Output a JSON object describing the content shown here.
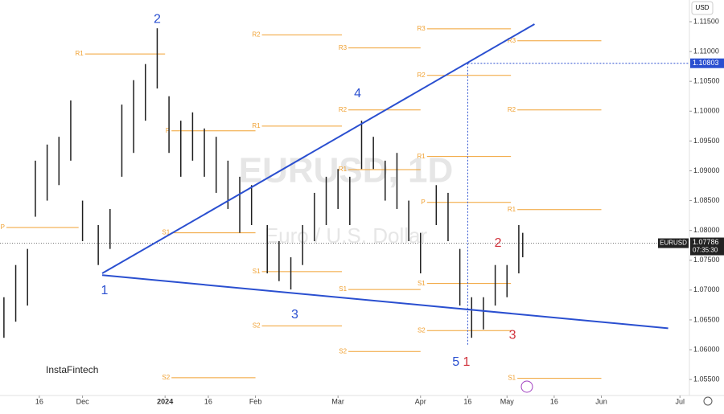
{
  "chart_data": {
    "type": "ohlc",
    "title": "EURUSD, 1D",
    "subtitle": "Euro / U.S. Dollar",
    "currency": "USD",
    "brand": "InstaFintech",
    "color": "#1e1e1e",
    "x": [
      1,
      4,
      7,
      9,
      12,
      15,
      18,
      21,
      25,
      28,
      31,
      34,
      37,
      40,
      43,
      46,
      49,
      52,
      55,
      58,
      61,
      64,
      68,
      71,
      74,
      77,
      80,
      83,
      86,
      89,
      92,
      95,
      98,
      101,
      104,
      107,
      111,
      114,
      117,
      120,
      123,
      126,
      129,
      132,
      133
    ],
    "high": [
      1.0688,
      1.0742,
      1.0769,
      1.0917,
      1.0944,
      1.0957,
      1.1018,
      1.085,
      1.0809,
      1.0836,
      1.1011,
      1.1052,
      1.1079,
      1.1139,
      1.1025,
      1.0984,
      1.0998,
      1.0971,
      1.0957,
      1.0917,
      1.089,
      1.0876,
      1.0809,
      1.0782,
      1.0755,
      1.0809,
      1.0863,
      1.089,
      1.0903,
      1.089,
      1.0984,
      1.0957,
      1.0917,
      1.093,
      1.085,
      1.0796,
      1.0876,
      1.0863,
      1.0769,
      1.0688,
      1.0688,
      1.0742,
      1.0742,
      1.0809,
      1.0796
    ],
    "low": [
      1.062,
      1.0647,
      1.0674,
      1.0823,
      1.085,
      1.0876,
      1.0917,
      1.0782,
      1.0742,
      1.0769,
      1.089,
      1.093,
      1.0984,
      1.1038,
      1.093,
      1.089,
      1.0917,
      1.089,
      1.0863,
      1.0836,
      1.0796,
      1.0809,
      1.0728,
      1.0715,
      1.0701,
      1.0742,
      1.0782,
      1.0809,
      1.0836,
      1.0809,
      1.0903,
      1.0903,
      1.085,
      1.0836,
      1.0782,
      1.0728,
      1.0809,
      1.0782,
      1.0674,
      1.062,
      1.0634,
      1.0674,
      1.0688,
      1.0728,
      1.0755
    ],
    "xlim": [
      0,
      175
    ],
    "ylim": [
      1.05259,
      1.11864
    ],
    "xticks": [
      {
        "value": 10,
        "label": "16"
      },
      {
        "value": 21,
        "label": "Dec"
      },
      {
        "value": 42,
        "label": "2024"
      },
      {
        "value": 53,
        "label": "16"
      },
      {
        "value": 65,
        "label": "Feb"
      },
      {
        "value": 86,
        "label": "Mar"
      },
      {
        "value": 107,
        "label": "Apr"
      },
      {
        "value": 119,
        "label": "16"
      },
      {
        "value": 129,
        "label": "May"
      },
      {
        "value": 141,
        "label": "16"
      },
      {
        "value": 153,
        "label": "Jun"
      },
      {
        "value": 173,
        "label": "Jul"
      }
    ],
    "yticks": [
      {
        "value": 1.115,
        "label": "1.11500"
      },
      {
        "value": 1.11,
        "label": "1.11000"
      },
      {
        "value": 1.105,
        "label": "1.10500"
      },
      {
        "value": 1.1,
        "label": "1.10000"
      },
      {
        "value": 1.095,
        "label": "1.09500"
      },
      {
        "value": 1.09,
        "label": "1.09000"
      },
      {
        "value": 1.085,
        "label": "1.08500"
      },
      {
        "value": 1.08,
        "label": "1.08000"
      },
      {
        "value": 1.075,
        "label": "1.07500"
      },
      {
        "value": 1.07,
        "label": "1.07000"
      },
      {
        "value": 1.065,
        "label": "1.06500"
      },
      {
        "value": 1.06,
        "label": "1.06000"
      },
      {
        "value": 1.055,
        "label": "1.05500"
      }
    ],
    "level_color": "#f0a030",
    "levels": [
      {
        "label": "P",
        "value": 1.0805,
        "x0": 0,
        "x1": 20
      },
      {
        "label": "R1",
        "value": 1.1096,
        "x0": 20,
        "x1": 42
      },
      {
        "label": "P",
        "value": 1.0967,
        "x0": 42,
        "x1": 65
      },
      {
        "label": "S1",
        "value": 1.0796,
        "x0": 42,
        "x1": 65
      },
      {
        "label": "S2",
        "value": 1.0553,
        "x0": 42,
        "x1": 65
      },
      {
        "label": "R2",
        "value": 1.1128,
        "x0": 65,
        "x1": 87
      },
      {
        "label": "R1",
        "value": 1.0975,
        "x0": 65,
        "x1": 87
      },
      {
        "label": "S1",
        "value": 1.0731,
        "x0": 65,
        "x1": 87
      },
      {
        "label": "S2",
        "value": 1.064,
        "x0": 65,
        "x1": 87
      },
      {
        "label": "R3",
        "value": 1.1106,
        "x0": 87,
        "x1": 107
      },
      {
        "label": "R2",
        "value": 1.1002,
        "x0": 87,
        "x1": 107
      },
      {
        "label": "R1",
        "value": 1.0902,
        "x0": 87,
        "x1": 107
      },
      {
        "label": "S1",
        "value": 1.0701,
        "x0": 87,
        "x1": 107
      },
      {
        "label": "S2",
        "value": 1.0597,
        "x0": 87,
        "x1": 107
      },
      {
        "label": "R3",
        "value": 1.1138,
        "x0": 107,
        "x1": 130
      },
      {
        "label": "R2",
        "value": 1.106,
        "x0": 107,
        "x1": 130
      },
      {
        "label": "R1",
        "value": 1.0924,
        "x0": 107,
        "x1": 130
      },
      {
        "label": "P",
        "value": 1.0847,
        "x0": 107,
        "x1": 130
      },
      {
        "label": "S1",
        "value": 1.0711,
        "x0": 107,
        "x1": 130
      },
      {
        "label": "S2",
        "value": 1.0632,
        "x0": 107,
        "x1": 130
      },
      {
        "label": "R3",
        "value": 1.1118,
        "x0": 130,
        "x1": 153
      },
      {
        "label": "R2",
        "value": 1.1002,
        "x0": 130,
        "x1": 153
      },
      {
        "label": "R1",
        "value": 1.0835,
        "x0": 130,
        "x1": 153
      },
      {
        "label": "S1",
        "value": 1.0552,
        "x0": 130,
        "x1": 153
      }
    ],
    "trend_color": "#2a4fd0",
    "trendlines": [
      {
        "x": [
          26,
          136
        ],
        "y": [
          1.0728,
          1.1146
        ]
      },
      {
        "x": [
          26,
          170
        ],
        "y": [
          1.0725,
          1.0636
        ]
      }
    ],
    "waves": [
      {
        "label": "2",
        "x": 40,
        "y": 1.1154,
        "color": "#2a4fd0"
      },
      {
        "label": "1",
        "x": 26.6,
        "y": 1.0699,
        "color": "#2a4fd0"
      },
      {
        "label": "4",
        "x": 91,
        "y": 1.1029,
        "color": "#2a4fd0"
      },
      {
        "label": "3",
        "x": 75,
        "y": 1.0658,
        "color": "#2a4fd0"
      },
      {
        "label": "5",
        "x": 116,
        "y": 1.0579,
        "color": "#2a4fd0"
      },
      {
        "label": "1",
        "x": 118.7,
        "y": 1.0579,
        "color": "#d0303a"
      },
      {
        "label": "2",
        "x": 126.7,
        "y": 1.0778,
        "color": "#d0303a"
      },
      {
        "label": "3",
        "x": 130.4,
        "y": 1.0624,
        "color": "#d0303a"
      }
    ],
    "last_price": {
      "value": 1.07786,
      "symbol": "EURUSD",
      "timer": "07:35:30"
    },
    "target": {
      "value": 1.10803,
      "x0": 119
    }
  }
}
